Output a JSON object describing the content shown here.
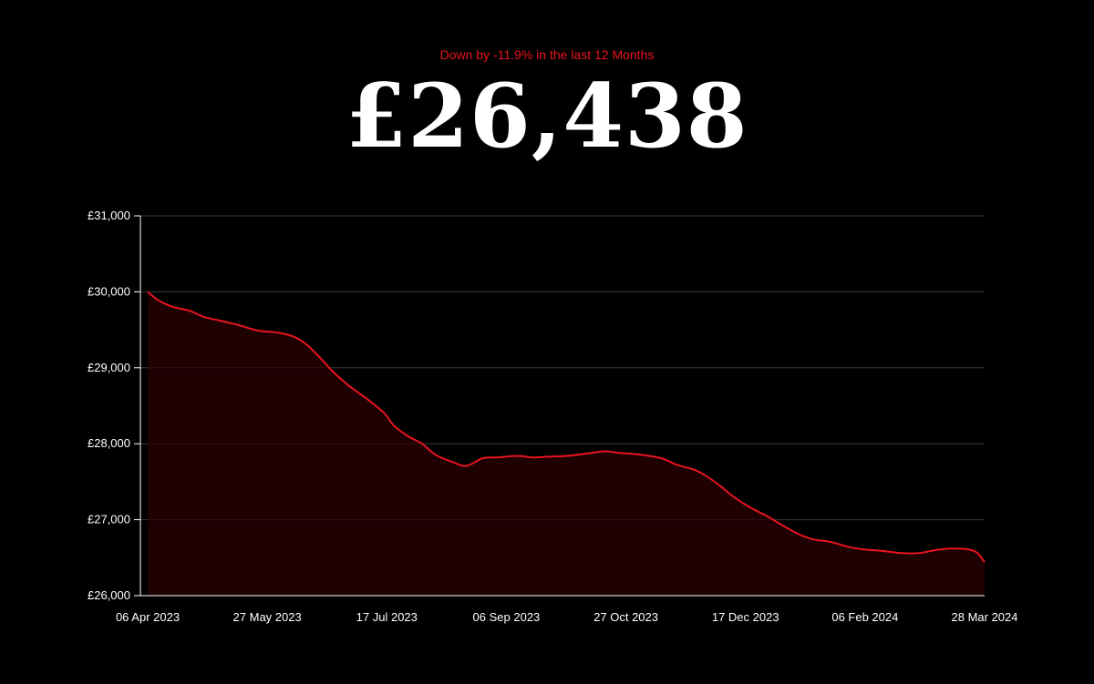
{
  "header": {
    "subtitle": "Down by -11.9% in the last 12 Months",
    "value": "£26,438"
  },
  "colors": {
    "background": "#000000",
    "line": "#e8141e",
    "area_fill": "#2a0205",
    "grid": "#3a3a3a",
    "text": "#ffffff"
  },
  "chart_data": {
    "type": "area",
    "title": "",
    "xlabel": "",
    "ylabel": "",
    "grid": true,
    "ylim": [
      26000,
      31000
    ],
    "y_ticks": [
      {
        "value": 26000,
        "label": "£26,000"
      },
      {
        "value": 27000,
        "label": "£27,000"
      },
      {
        "value": 28000,
        "label": "£28,000"
      },
      {
        "value": 29000,
        "label": "£29,000"
      },
      {
        "value": 30000,
        "label": "£30,000"
      },
      {
        "value": 31000,
        "label": "£31,000"
      }
    ],
    "xlim": [
      "2023-04-06",
      "2024-03-28"
    ],
    "x_ticks": [
      {
        "date": "2023-04-06",
        "label": "06 Apr 2023"
      },
      {
        "date": "2023-05-27",
        "label": "27 May 2023"
      },
      {
        "date": "2023-07-17",
        "label": "17 Jul 2023"
      },
      {
        "date": "2023-09-06",
        "label": "06 Sep 2023"
      },
      {
        "date": "2023-10-27",
        "label": "27 Oct 2023"
      },
      {
        "date": "2023-12-17",
        "label": "17 Dec 2023"
      },
      {
        "date": "2024-02-06",
        "label": "06 Feb 2024"
      },
      {
        "date": "2024-03-28",
        "label": "28 Mar 2024"
      }
    ],
    "series": [
      {
        "points": [
          [
            "2023-04-06",
            30000
          ],
          [
            "2023-04-11",
            29880
          ],
          [
            "2023-04-17",
            29800
          ],
          [
            "2023-04-24",
            29750
          ],
          [
            "2023-04-30",
            29670
          ],
          [
            "2023-05-07",
            29620
          ],
          [
            "2023-05-15",
            29560
          ],
          [
            "2023-05-23",
            29490
          ],
          [
            "2023-06-01",
            29460
          ],
          [
            "2023-06-08",
            29400
          ],
          [
            "2023-06-13",
            29300
          ],
          [
            "2023-06-18",
            29150
          ],
          [
            "2023-06-24",
            28950
          ],
          [
            "2023-07-01",
            28760
          ],
          [
            "2023-07-09",
            28580
          ],
          [
            "2023-07-16",
            28400
          ],
          [
            "2023-07-20",
            28240
          ],
          [
            "2023-07-26",
            28100
          ],
          [
            "2023-08-01",
            28000
          ],
          [
            "2023-08-07",
            27850
          ],
          [
            "2023-08-14",
            27760
          ],
          [
            "2023-08-20",
            27710
          ],
          [
            "2023-08-27",
            27810
          ],
          [
            "2023-09-02",
            27820
          ],
          [
            "2023-09-11",
            27840
          ],
          [
            "2023-09-17",
            27820
          ],
          [
            "2023-09-24",
            27830
          ],
          [
            "2023-10-02",
            27840
          ],
          [
            "2023-10-10",
            27870
          ],
          [
            "2023-10-18",
            27900
          ],
          [
            "2023-10-24",
            27880
          ],
          [
            "2023-11-01",
            27860
          ],
          [
            "2023-11-11",
            27810
          ],
          [
            "2023-11-18",
            27720
          ],
          [
            "2023-11-25",
            27660
          ],
          [
            "2023-11-30",
            27580
          ],
          [
            "2023-12-06",
            27450
          ],
          [
            "2023-12-12",
            27300
          ],
          [
            "2023-12-19",
            27160
          ],
          [
            "2023-12-26",
            27050
          ],
          [
            "2024-01-01",
            26940
          ],
          [
            "2024-01-08",
            26820
          ],
          [
            "2024-01-15",
            26740
          ],
          [
            "2024-01-22",
            26710
          ],
          [
            "2024-01-29",
            26650
          ],
          [
            "2024-02-05",
            26610
          ],
          [
            "2024-02-13",
            26590
          ],
          [
            "2024-02-22",
            26560
          ],
          [
            "2024-02-29",
            26560
          ],
          [
            "2024-03-07",
            26600
          ],
          [
            "2024-03-14",
            26620
          ],
          [
            "2024-03-21",
            26610
          ],
          [
            "2024-03-25",
            26560
          ],
          [
            "2024-03-28",
            26440
          ]
        ]
      }
    ]
  }
}
